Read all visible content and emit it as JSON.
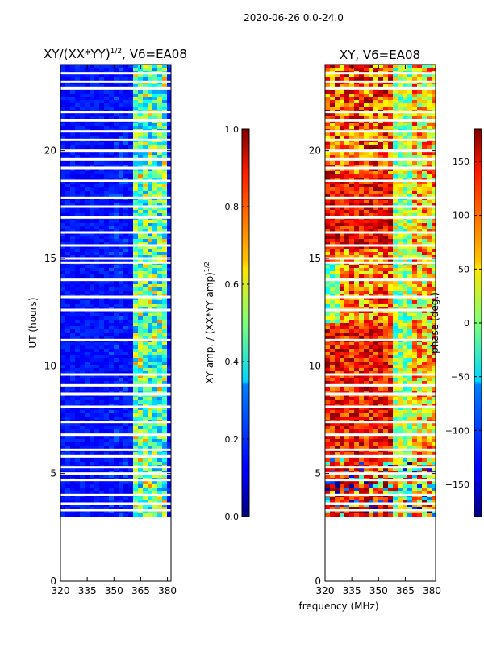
{
  "suptitle": "2020-06-26 0.0-24.0",
  "chart_data": [
    {
      "type": "heatmap",
      "title_main": "XY/(XX*YY)",
      "title_sup": "1/2",
      "title_tail": ", V6=EA08",
      "xlabel": "",
      "ylabel": "UT (hours)",
      "xlim": [
        320,
        382
      ],
      "ylim": [
        0,
        24
      ],
      "xticks": [
        "320",
        "335",
        "350",
        "365",
        "380"
      ],
      "xtick_values": [
        320,
        335,
        350,
        365,
        380
      ],
      "yticks": [
        "0",
        "5",
        "10",
        "15",
        "20"
      ],
      "ytick_values": [
        0,
        5,
        10,
        15,
        20
      ],
      "data_start_hour": 3.0,
      "colormap": "jet",
      "colorbar": {
        "label_main": "XY amp. / (XX*YY amp)",
        "label_sup": "1/2",
        "min": 0.0,
        "max": 1.0,
        "ticks": [
          "0.0",
          "0.2",
          "0.4",
          "0.6",
          "0.8",
          "1.0"
        ],
        "tick_values": [
          0.0,
          0.2,
          0.4,
          0.6,
          0.8,
          1.0
        ]
      }
    },
    {
      "type": "heatmap",
      "title_main": "XY, V6=EA08",
      "xlabel": "frequency (MHz)",
      "ylabel": "",
      "xlim": [
        320,
        382
      ],
      "ylim": [
        0,
        24
      ],
      "xticks": [
        "320",
        "335",
        "350",
        "365",
        "380"
      ],
      "xtick_values": [
        320,
        335,
        350,
        365,
        380
      ],
      "yticks": [
        "0",
        "5",
        "10",
        "15",
        "20"
      ],
      "ytick_values": [
        0,
        5,
        10,
        15,
        20
      ],
      "data_start_hour": 3.0,
      "colormap": "jet",
      "colorbar": {
        "label_main": "phase (deg.)",
        "min": -180,
        "max": 180,
        "ticks": [
          "−150",
          "−100",
          "−50",
          "0",
          "50",
          "100",
          "150"
        ],
        "tick_values": [
          -150,
          -100,
          -50,
          0,
          50,
          100,
          150
        ]
      }
    }
  ],
  "blank_hours": [
    3.3,
    3.6,
    4.0,
    4.7,
    5.0,
    5.3,
    5.8,
    6.1,
    6.8,
    7.4,
    8.1,
    8.7,
    9.1,
    9.6,
    11.2,
    12.6,
    13.2,
    14.0,
    14.8,
    15.0,
    15.6,
    16.2,
    16.9,
    17.4,
    17.8,
    18.6,
    19.2,
    19.6,
    20.0,
    20.5,
    20.9,
    21.4,
    21.8,
    22.9,
    23.2,
    23.6
  ]
}
